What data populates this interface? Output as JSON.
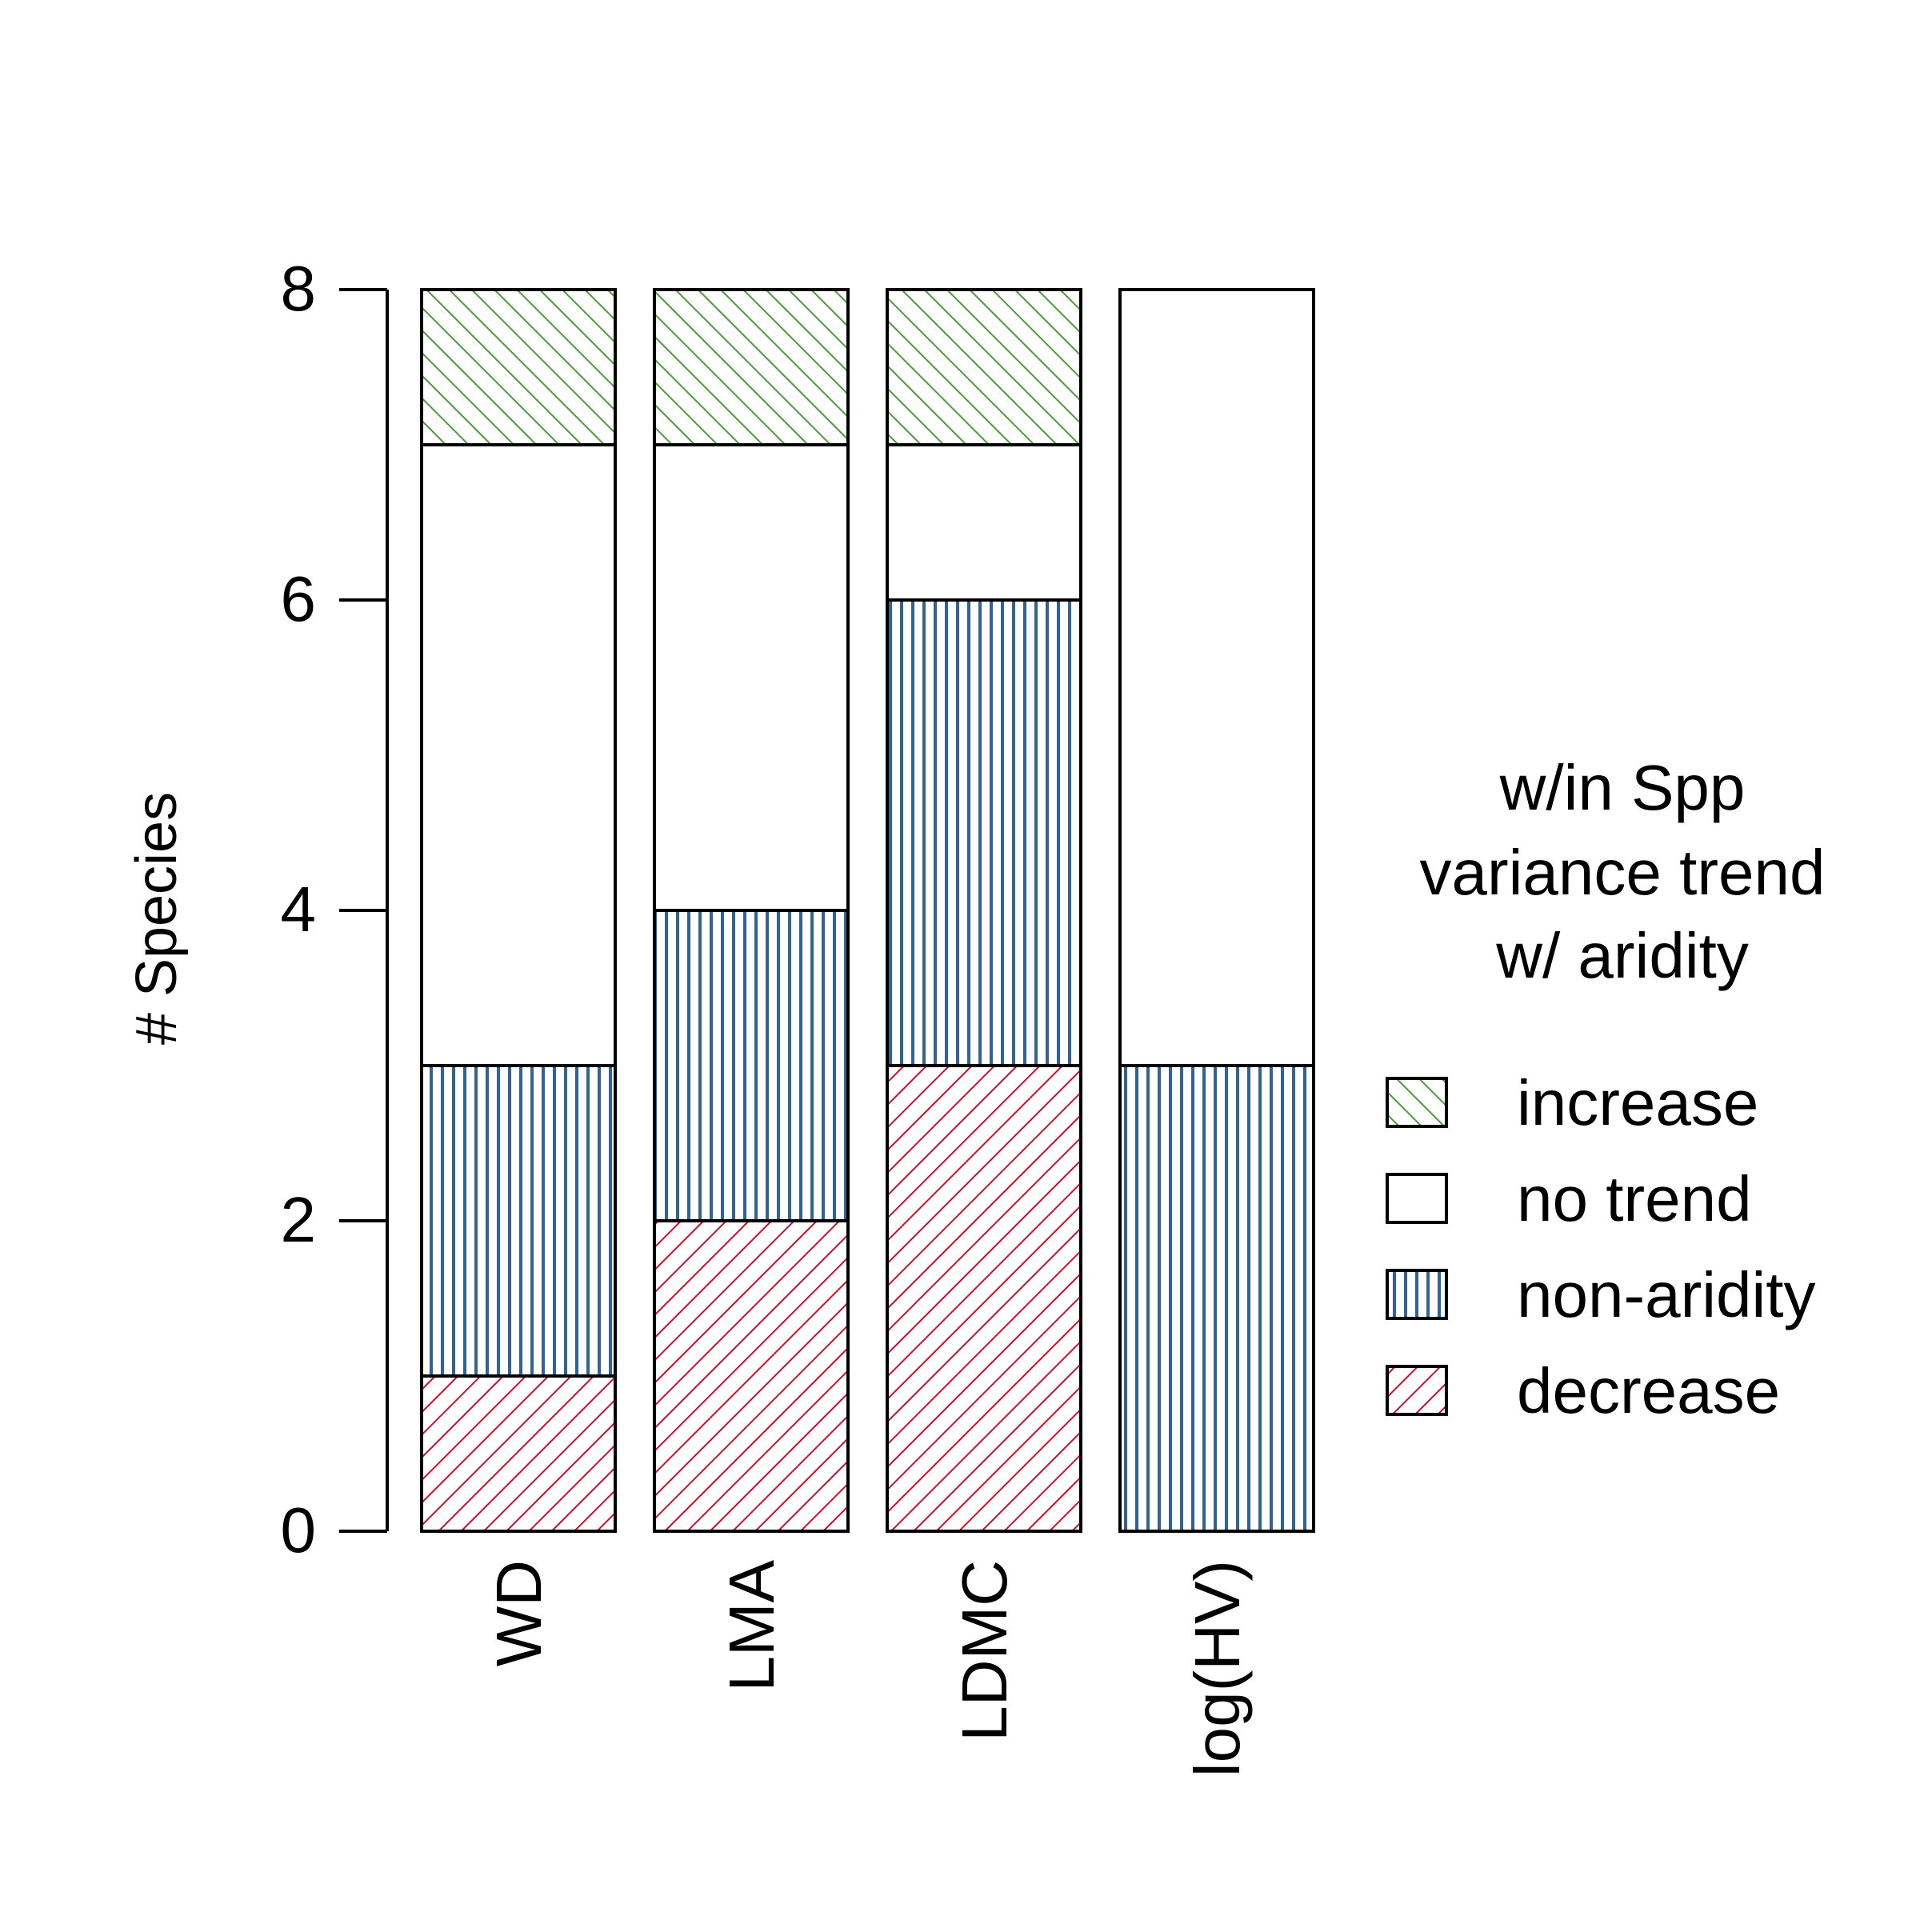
{
  "chart_data": {
    "type": "bar",
    "stacked": true,
    "ylabel": "# Species",
    "ylim": [
      0,
      8
    ],
    "yticks": [
      "0",
      "2",
      "4",
      "6",
      "8"
    ],
    "categories": [
      "WD",
      "LMA",
      "LDMC",
      "log(HV)"
    ],
    "series": [
      {
        "name": "decrease",
        "values": [
          1,
          2,
          3,
          0
        ],
        "color": "#c8102e",
        "pattern": "diagonal-up"
      },
      {
        "name": "non-aridity",
        "values": [
          2,
          2,
          3,
          3
        ],
        "color": "#2f6399",
        "pattern": "vertical"
      },
      {
        "name": "no trend",
        "values": [
          4,
          3,
          1,
          5
        ],
        "color": "#ffffff",
        "pattern": "none"
      },
      {
        "name": "increase",
        "values": [
          1,
          1,
          1,
          0
        ],
        "color": "#4c9a3c",
        "pattern": "diagonal-down"
      }
    ],
    "legend": {
      "title_lines": [
        "w/in Spp",
        "variance trend",
        "w/ aridity"
      ],
      "items": [
        "increase",
        "no trend",
        "non-aridity",
        "decrease"
      ],
      "placement": "right"
    },
    "grid": false
  }
}
